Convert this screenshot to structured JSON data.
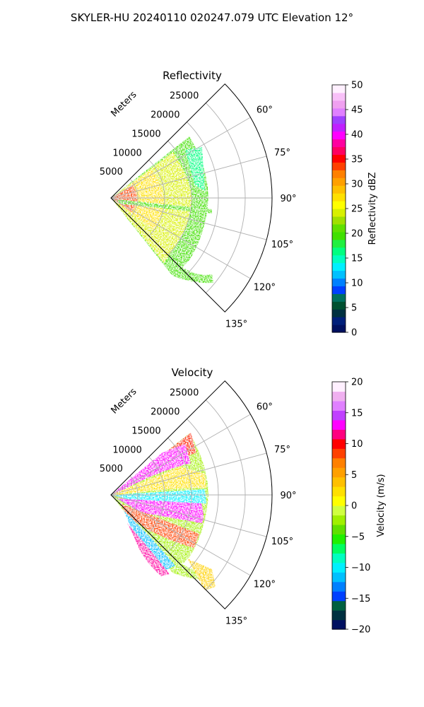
{
  "figure": {
    "title": "SKYLER-HU  20240110  020247.079 UTC Elevation 12°"
  },
  "range_unit": "Meters",
  "range_rings": [
    5000,
    10000,
    15000,
    20000,
    25000
  ],
  "azimuth_ticks": [
    "60°",
    "75°",
    "90°",
    "105°",
    "120°",
    "135°"
  ],
  "chart_data": [
    {
      "type": "ppi-sector",
      "title": "Reflectivity",
      "sector_deg": [
        45,
        135
      ],
      "range_max": 30000,
      "range_ticks": [
        5000,
        10000,
        15000,
        20000,
        25000
      ],
      "azimuth_ticks_deg": [
        60,
        75,
        90,
        105,
        120,
        135
      ],
      "colorbar": {
        "label": "Reflectivity dBZ",
        "ticks": [
          "50",
          "45",
          "40",
          "35",
          "30",
          "25",
          "20",
          "15",
          "10",
          "5",
          "0"
        ],
        "range": [
          0,
          50
        ],
        "colors": [
          "#001060",
          "#001f7a",
          "#003040",
          "#005030",
          "#007060",
          "#0040ff",
          "#0080ff",
          "#00c0ff",
          "#00f0ff",
          "#00ffc0",
          "#00ff80",
          "#20f040",
          "#40e000",
          "#60e000",
          "#a0e000",
          "#d8f000",
          "#ffff00",
          "#ffe000",
          "#ffc000",
          "#ffa000",
          "#ff8000",
          "#ff4000",
          "#ff0000",
          "#ff0060",
          "#ff00a0",
          "#ff00ff",
          "#c020ff",
          "#a040ff",
          "#e080ff",
          "#f0a0f0",
          "#f8c0f8",
          "#fff0ff"
        ]
      }
    },
    {
      "type": "ppi-sector",
      "title": "Velocity",
      "sector_deg": [
        45,
        135
      ],
      "range_max": 30000,
      "range_ticks": [
        5000,
        10000,
        15000,
        20000,
        25000
      ],
      "azimuth_ticks_deg": [
        60,
        75,
        90,
        105,
        120,
        135
      ],
      "colorbar": {
        "label": "Velocity (m/s)",
        "ticks": [
          "20",
          "15",
          "10",
          "5",
          "0",
          "−5",
          "−10",
          "−15",
          "−20"
        ],
        "range": [
          -20,
          20
        ],
        "colors": [
          "#001060",
          "#003040",
          "#006040",
          "#0040ff",
          "#0080ff",
          "#00c0ff",
          "#00f0ff",
          "#00ffc0",
          "#00ff60",
          "#20f000",
          "#60e000",
          "#a0f000",
          "#d0ff40",
          "#ffff00",
          "#ffe000",
          "#ffc000",
          "#ffa000",
          "#ff8000",
          "#ff4000",
          "#ff0000",
          "#ff0080",
          "#ff00ff",
          "#c040ff",
          "#e080ff",
          "#f0b0f0",
          "#fff0ff"
        ]
      }
    }
  ]
}
